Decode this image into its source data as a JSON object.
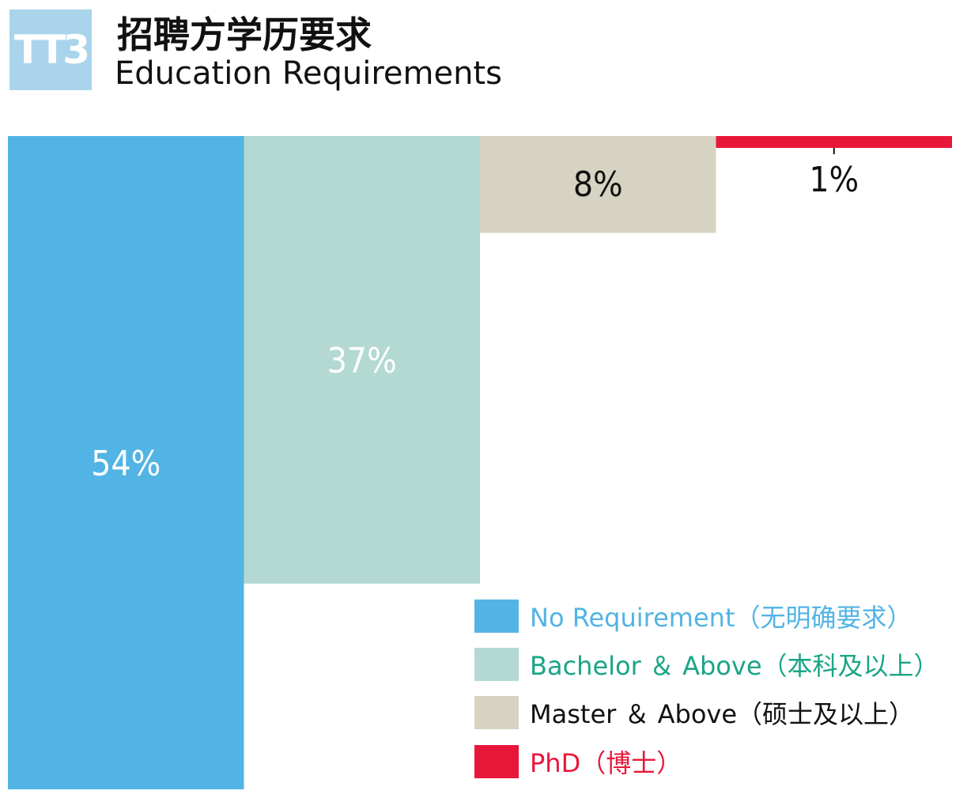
{
  "header": {
    "badge": "TT3",
    "title_cn": "招聘方学历要求",
    "title_en": "Education Requirements"
  },
  "colors": {
    "no_requirement": "#52b4e4",
    "bachelor": "#b3d9d2",
    "master": "#d7d3c2",
    "phd": "#e8173a",
    "bachelor_text": "#1aa586",
    "no_requirement_text": "#52b4e4",
    "master_text": "#111111",
    "phd_text": "#e8173a"
  },
  "chart_data": {
    "type": "bar",
    "categories": [
      "No Requirement（无明确要求）",
      "Bachelor ＆ Above（本科及以上）",
      "Master ＆ Above（硕士及以上）",
      "PhD（博士）"
    ],
    "values": [
      54,
      37,
      8,
      1
    ],
    "value_labels": [
      "54%",
      "37%",
      "8%",
      "1%"
    ],
    "title": "",
    "xlabel": "",
    "ylabel": "",
    "ylim": [
      0,
      54
    ],
    "orientation": "vertical-hanging",
    "grid": false,
    "legend_position": "bottom-right"
  }
}
